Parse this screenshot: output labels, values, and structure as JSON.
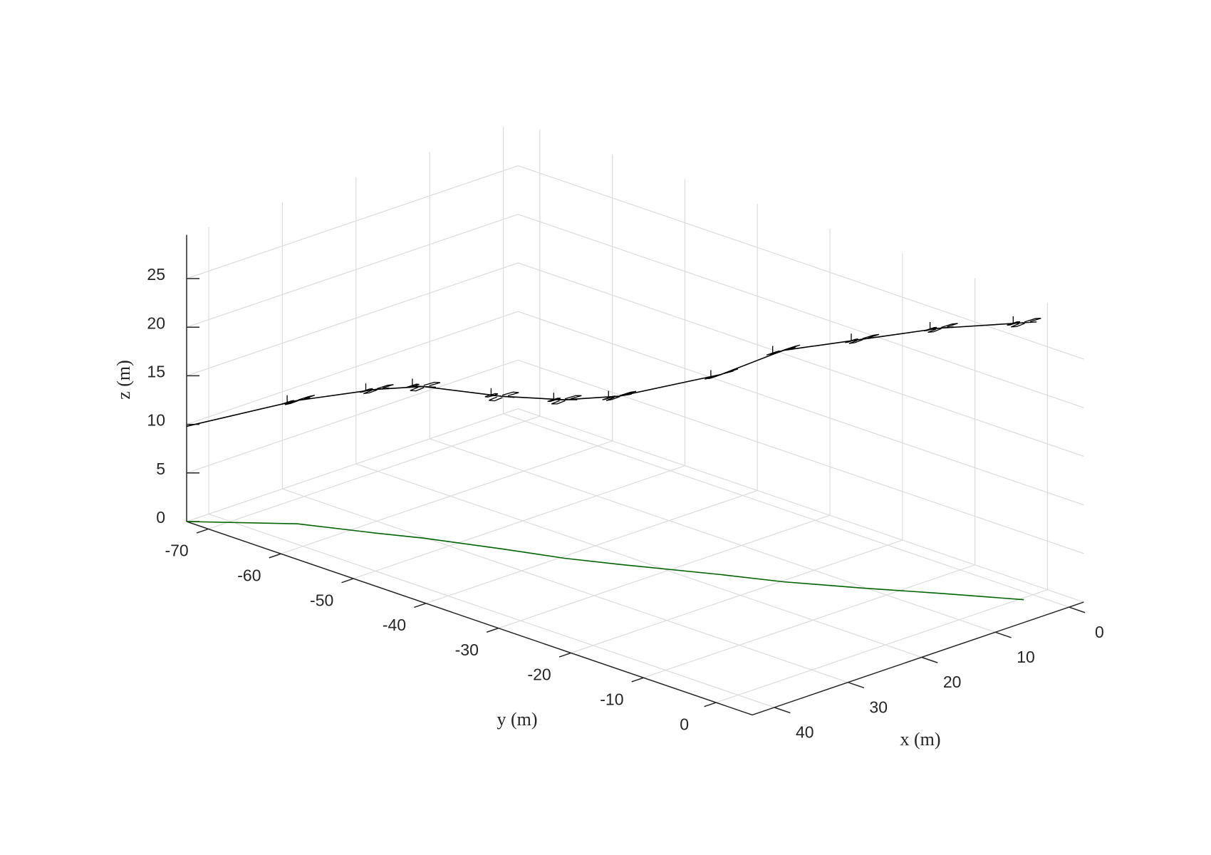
{
  "chart_data": {
    "type": "line3d",
    "xlabel": "x (m)",
    "ylabel": "y (m)",
    "zlabel": "z (m)",
    "x": [
      43,
      35.9,
      32.4,
      30.2,
      27.0,
      24.6,
      22.1,
      17.2,
      14.4,
      10.3,
      6.0,
      1.6
    ],
    "y": [
      -73,
      -64.9,
      -57.6,
      -53.4,
      -45.8,
      -39.6,
      -34.6,
      -25.5,
      -19.8,
      -13.1,
      -6.6,
      0.4
    ],
    "z": [
      9.8,
      12.7,
      14.8,
      15.6,
      15.7,
      16.3,
      17.3,
      20.6,
      23.8,
      25.6,
      27.3,
      28.5
    ],
    "color": "#000000",
    "ground_track_color": "#006400",
    "xlim": [
      -2,
      43
    ],
    "ylim": [
      -73,
      5
    ],
    "zlim": [
      0,
      29.5
    ],
    "xticks": [
      0,
      10,
      20,
      30,
      40
    ],
    "yticks": [
      -70,
      -60,
      -50,
      -40,
      -30,
      -20,
      -10,
      0
    ],
    "zticks": [
      0,
      5,
      10,
      15,
      20,
      25
    ],
    "grid": true
  }
}
